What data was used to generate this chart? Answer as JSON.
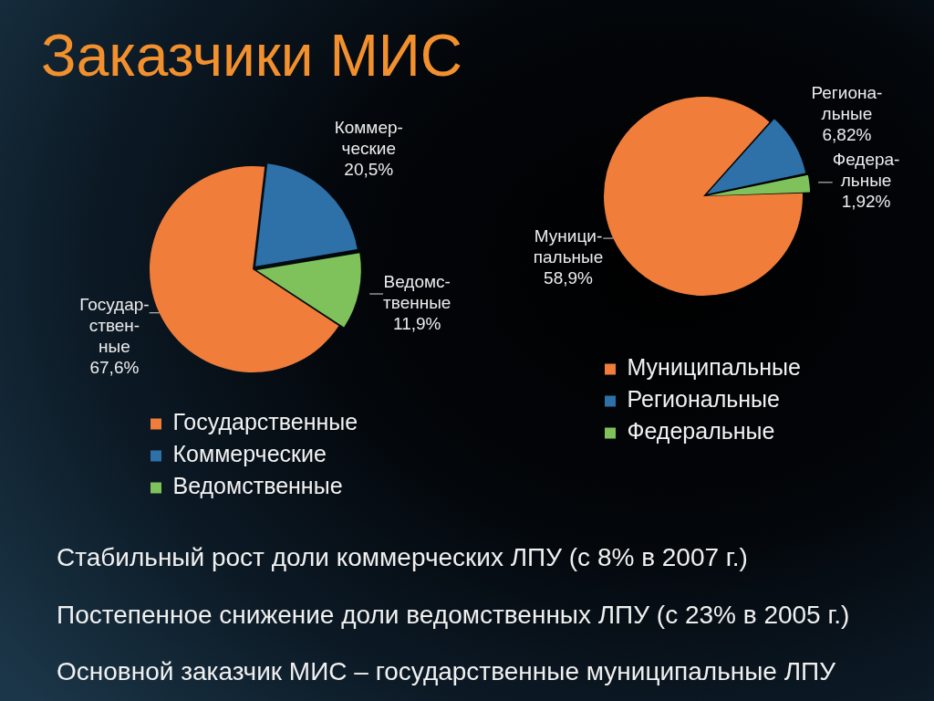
{
  "chart_data": [
    {
      "type": "pie",
      "title": "Заказчики МИС",
      "categories": [
        "Государственные",
        "Коммерческие",
        "Ведомственные"
      ],
      "values": [
        67.6,
        20.5,
        11.9
      ],
      "colors": [
        "#f07d3a",
        "#2e70a8",
        "#7fc25b"
      ],
      "value_labels": [
        "Государ-\nствен-\nные\n67,6%",
        "Коммер-\nческие\n20,5%",
        "Ведомс-\nтвенные\n11,9%"
      ],
      "legend": "bottom"
    },
    {
      "type": "pie",
      "categories": [
        "Муниципальные",
        "Региональные",
        "Федеральные"
      ],
      "values": [
        58.9,
        6.82,
        1.92
      ],
      "colors": [
        "#f07d3a",
        "#2e70a8",
        "#7fc25b"
      ],
      "value_labels": [
        "Муници-\nпальные\n58,9%",
        "Региона-\nльные\n6,82%",
        "Федера-\nльные\n1,92%"
      ],
      "legend": "bottom",
      "annotations": [
        "Стабильный рост доли коммерческих ЛПУ (с 8% в 2007 г.)",
        "Постепенное снижение доли ведомственных ЛПУ (с 23% в 2005 г.)",
        "Основной заказчик МИС – государственные муниципальные ЛПУ"
      ]
    }
  ]
}
